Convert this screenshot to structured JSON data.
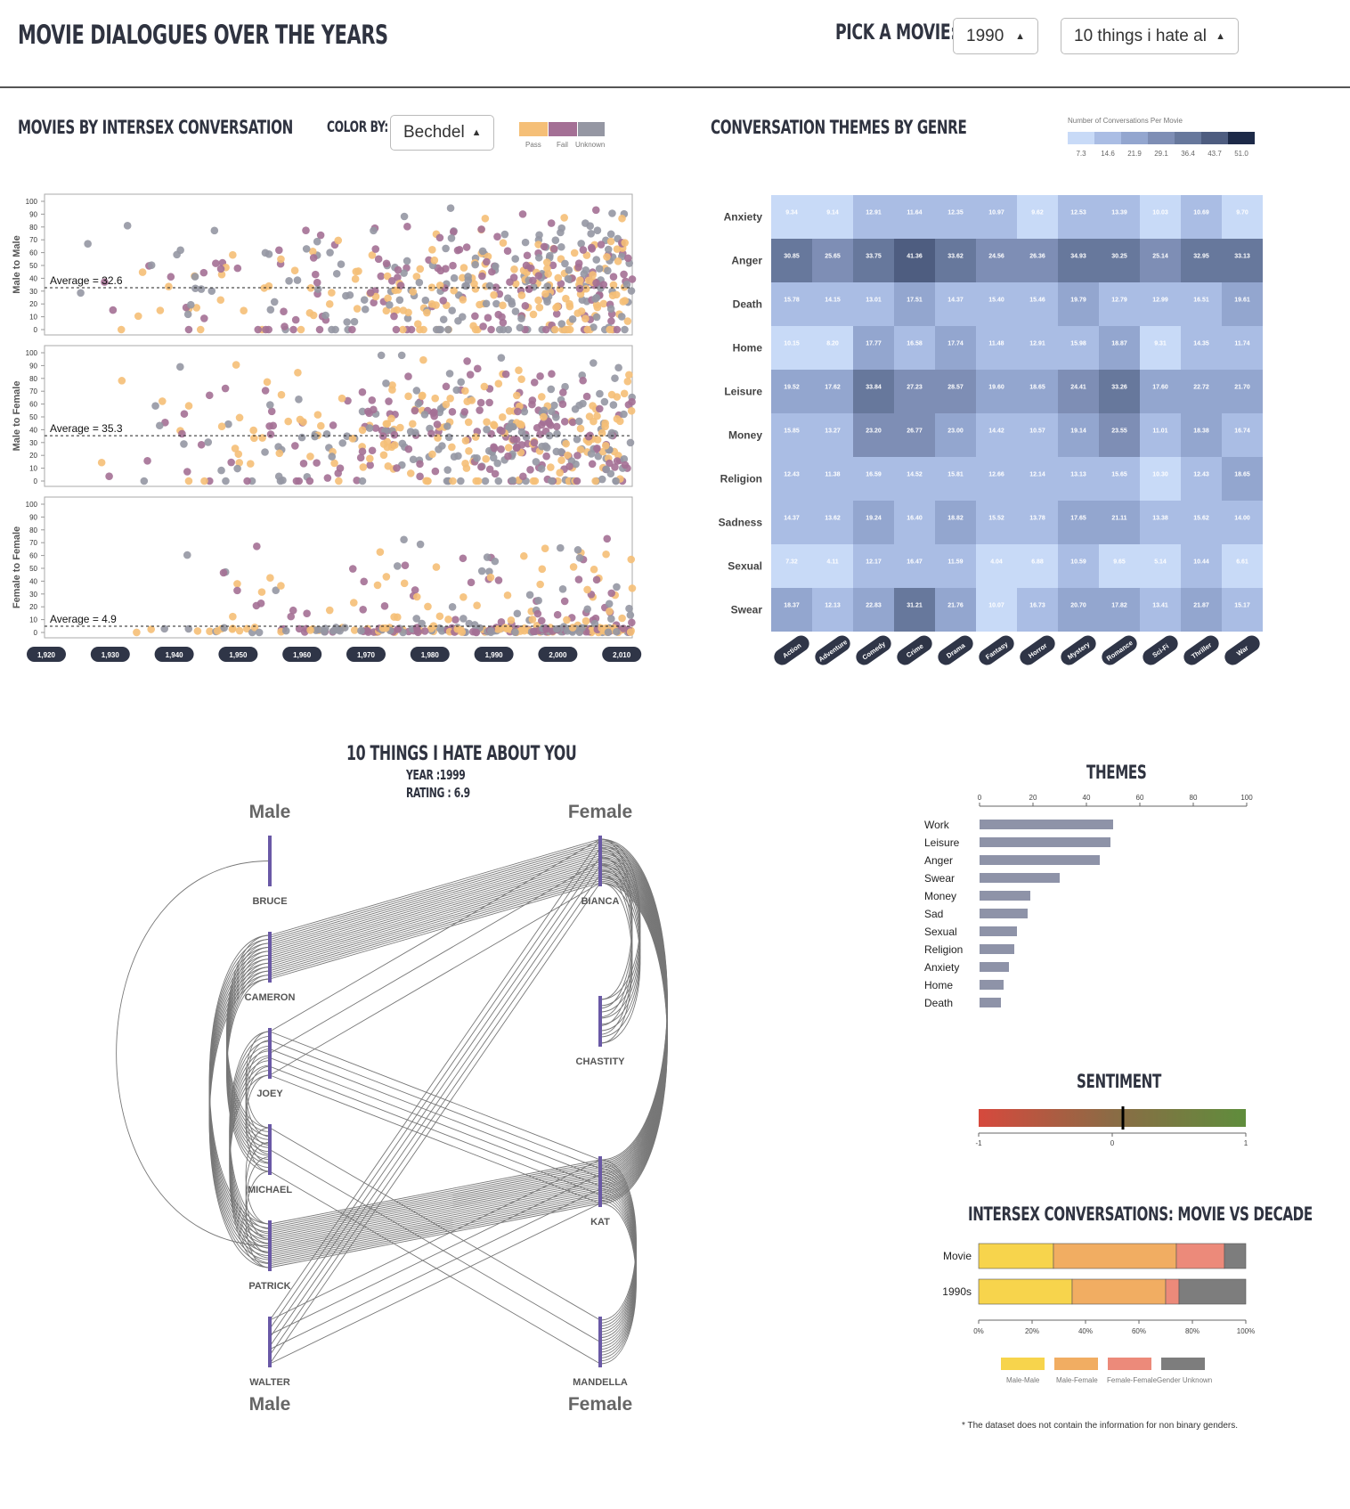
{
  "header": {
    "title": "MOVIE DIALOGUES OVER THE YEARS",
    "pick_label": "PICK A MOVIE:",
    "year_select": "1990",
    "movie_select": "10 things i hate al"
  },
  "scatter_panel": {
    "title": "MOVIES BY INTERSEX CONVERSATION",
    "color_by_label": "COLOR BY:",
    "color_by_select": "Bechdel",
    "legend": [
      {
        "label": "Pass",
        "color": "#f5bf77"
      },
      {
        "label": "Fail",
        "color": "#a47095"
      },
      {
        "label": "Unknown",
        "color": "#9597a3"
      }
    ],
    "decade_buttons": [
      "1,920",
      "1,930",
      "1,940",
      "1,950",
      "1,960",
      "1,970",
      "1,980",
      "1,990",
      "2,000",
      "2,010"
    ]
  },
  "heatmap_panel": {
    "title": "CONVERSATION THEMES BY GENRE",
    "legend_title": "Number of Conversations Per Movie",
    "legend_ticks": [
      "7.3",
      "14.6",
      "21.9",
      "29.1",
      "36.4",
      "43.7",
      "51.0"
    ],
    "legend_colors": [
      "#c8daf7",
      "#aabde4",
      "#93a6cf",
      "#7e8eb5",
      "#67789c",
      "#4e5d80",
      "#1d2a48"
    ]
  },
  "arc_panel": {
    "title": "10 THINGS I HATE ABOUT YOU",
    "year": "YEAR :1999",
    "rating": "RATING : 6.9",
    "male_label": "Male",
    "female_label": "Female",
    "male_chars": [
      "BRUCE",
      "CAMERON",
      "JOEY",
      "MICHAEL",
      "PATRICK",
      "WALTER"
    ],
    "female_chars": [
      "BIANCA",
      "CHASTITY",
      "KAT",
      "MANDELLA"
    ]
  },
  "themes_panel": {
    "title": "THEMES"
  },
  "sentiment_panel": {
    "title": "SENTIMENT",
    "ticks": [
      "-1",
      "0",
      "1"
    ],
    "value": 0.08
  },
  "intersex_panel": {
    "title": "INTERSEX CONVERSATIONS: MOVIE VS DECADE",
    "legend": [
      {
        "label": "Male-Male",
        "color": "#f7d44c"
      },
      {
        "label": "Male-Female",
        "color": "#f1ad62"
      },
      {
        "label": "Female-Female",
        "color": "#ec8a7a"
      },
      {
        "label": "Gender Unknown",
        "color": "#7d7d7d"
      }
    ]
  },
  "footnote": "* The dataset does not contain the information for non binary genders.",
  "chart_data": [
    {
      "type": "scatter",
      "title": "MOVIES BY INTERSEX CONVERSATION",
      "panels": [
        {
          "ylabel": "Male to Male",
          "average": 32.6,
          "average_label": "Average = 32.6"
        },
        {
          "ylabel": "Male to Female",
          "average": 35.3,
          "average_label": "Average = 35.3"
        },
        {
          "ylabel": "Female to Female",
          "average": 4.9,
          "average_label": "Average = 4.9"
        }
      ],
      "ylim": [
        0,
        100
      ],
      "yticks": [
        0,
        10,
        20,
        30,
        40,
        50,
        60,
        70,
        80,
        90,
        100
      ],
      "xlim": [
        1915,
        2015
      ]
    },
    {
      "type": "heatmap",
      "title": "CONVERSATION THEMES BY GENRE",
      "rows": [
        "Anxiety",
        "Anger",
        "Death",
        "Home",
        "Leisure",
        "Money",
        "Religion",
        "Sadness",
        "Sexual",
        "Swear"
      ],
      "columns": [
        "Action",
        "Adventure",
        "Comedy",
        "Crime",
        "Drama",
        "Fantasy",
        "Horror",
        "Mystery",
        "Romance",
        "Sci-Fi",
        "Thriller",
        "War"
      ],
      "values": [
        [
          9.34,
          9.14,
          12.91,
          11.64,
          12.35,
          10.97,
          9.62,
          12.53,
          13.39,
          10.03,
          10.69,
          9.7
        ],
        [
          30.85,
          25.65,
          33.75,
          41.36,
          33.62,
          24.56,
          26.36,
          34.93,
          30.25,
          25.14,
          32.95,
          33.13
        ],
        [
          15.78,
          14.15,
          13.01,
          17.51,
          14.37,
          15.4,
          15.46,
          19.79,
          12.79,
          12.99,
          16.51,
          19.61
        ],
        [
          10.15,
          8.2,
          17.77,
          16.58,
          17.74,
          11.48,
          12.91,
          15.98,
          18.87,
          9.31,
          14.35,
          11.74
        ],
        [
          19.52,
          17.62,
          33.84,
          27.23,
          28.57,
          19.6,
          18.65,
          24.41,
          33.26,
          17.6,
          22.72,
          21.7
        ],
        [
          15.85,
          13.27,
          23.2,
          26.77,
          23.0,
          14.42,
          10.57,
          19.14,
          23.55,
          11.01,
          18.38,
          16.74
        ],
        [
          12.43,
          11.38,
          16.59,
          14.52,
          15.81,
          12.66,
          12.14,
          13.13,
          15.65,
          10.3,
          12.43,
          18.65
        ],
        [
          14.37,
          13.62,
          19.24,
          16.4,
          18.82,
          15.52,
          13.78,
          17.65,
          21.11,
          13.38,
          15.62,
          14.0
        ],
        [
          7.32,
          4.11,
          12.17,
          16.47,
          11.59,
          4.04,
          6.88,
          10.59,
          9.65,
          5.14,
          10.44,
          6.61
        ],
        [
          18.37,
          12.13,
          22.83,
          31.21,
          21.76,
          10.07,
          16.73,
          20.7,
          17.82,
          13.41,
          21.87,
          15.17
        ]
      ]
    },
    {
      "type": "bar",
      "title": "THEMES",
      "categories": [
        "Work",
        "Leisure",
        "Anger",
        "Swear",
        "Money",
        "Sad",
        "Sexual",
        "Religion",
        "Anxiety",
        "Home",
        "Death"
      ],
      "values": [
        50,
        49,
        45,
        30,
        19,
        18,
        14,
        13,
        11,
        9,
        8
      ],
      "xticks": [
        0,
        20,
        40,
        60,
        80,
        100
      ],
      "xlim": [
        0,
        100
      ]
    },
    {
      "type": "bar",
      "title": "INTERSEX CONVERSATIONS: MOVIE VS DECADE",
      "categories": [
        "Movie",
        "1990s"
      ],
      "series": [
        {
          "name": "Male-Male",
          "values": [
            28,
            35
          ]
        },
        {
          "name": "Male-Female",
          "values": [
            46,
            35
          ]
        },
        {
          "name": "Female-Female",
          "values": [
            18,
            5
          ]
        },
        {
          "name": "Gender Unknown",
          "values": [
            8,
            25
          ]
        }
      ],
      "xticks": [
        "0%",
        "20%",
        "40%",
        "60%",
        "80%",
        "100%"
      ]
    }
  ]
}
